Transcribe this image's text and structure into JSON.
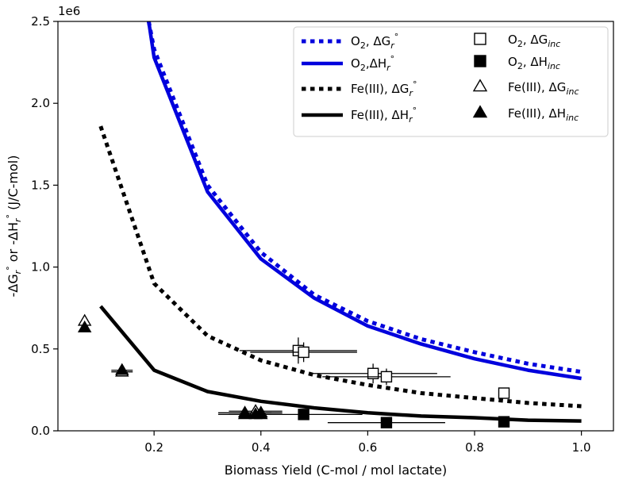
{
  "chart_data": {
    "type": "line",
    "title": "",
    "xlabel": "Biomass Yield (C-mol / mol lactate)",
    "ylabel_parts": [
      "-ΔG",
      "r",
      "°",
      " or -ΔH",
      "r",
      "°",
      " (J/C-mol)"
    ],
    "y_multiplier_label": "1e6",
    "xlim": [
      0.02,
      1.06
    ],
    "ylim": [
      0,
      2.5
    ],
    "y_scale": 1000000,
    "x_ticks": [
      0.2,
      0.4,
      0.6,
      0.8,
      1.0
    ],
    "x_tick_labels": [
      "0.2",
      "0.4",
      "0.6",
      "0.8",
      "1.0"
    ],
    "y_ticks": [
      0.0,
      0.5,
      1.0,
      1.5,
      2.0,
      2.5
    ],
    "y_tick_labels": [
      "0.0",
      "0.5",
      "1.0",
      "1.5",
      "2.0",
      "2.5"
    ],
    "grid": false,
    "legend_position": "top-right",
    "colors": {
      "blue": "#0000dd",
      "black": "#000000"
    },
    "lines": [
      {
        "name": "O2, ΔGr° (dotted)",
        "color": "#0000dd",
        "style": "dotted",
        "label_main": "O",
        "label_sub": "2",
        "label_rest": ", ΔG",
        "label_r": "r",
        "label_deg": "°",
        "x": [
          0.19,
          0.2,
          0.3,
          0.4,
          0.5,
          0.6,
          0.7,
          0.8,
          0.9,
          1.0
        ],
        "y": [
          2.5,
          2.33,
          1.5,
          1.09,
          0.83,
          0.67,
          0.56,
          0.48,
          0.41,
          0.36
        ]
      },
      {
        "name": "O2, ΔHr° (solid)",
        "color": "#0000dd",
        "style": "solid",
        "label_main": "O",
        "label_sub": "2",
        "label_rest": ",ΔH",
        "label_r": "r",
        "label_deg": "°",
        "x": [
          0.19,
          0.2,
          0.3,
          0.4,
          0.5,
          0.6,
          0.7,
          0.8,
          0.9,
          1.0
        ],
        "y": [
          2.5,
          2.28,
          1.46,
          1.05,
          0.81,
          0.64,
          0.53,
          0.44,
          0.37,
          0.32
        ]
      },
      {
        "name": "Fe(III), ΔGr° (dotted)",
        "color": "#000000",
        "style": "dotted",
        "label_main": "Fe(III), ΔG",
        "label_sub": "",
        "label_rest": "",
        "label_r": "r",
        "label_deg": "°",
        "x": [
          0.1,
          0.2,
          0.3,
          0.4,
          0.5,
          0.6,
          0.7,
          0.8,
          0.9,
          1.0
        ],
        "y": [
          1.86,
          0.9,
          0.58,
          0.43,
          0.34,
          0.28,
          0.23,
          0.2,
          0.17,
          0.15
        ]
      },
      {
        "name": "Fe(III), ΔHr° (solid)",
        "color": "#000000",
        "style": "solid",
        "label_main": "Fe(III), ΔH",
        "label_sub": "",
        "label_rest": "",
        "label_r": "r",
        "label_deg": "°",
        "x": [
          0.1,
          0.2,
          0.3,
          0.4,
          0.5,
          0.6,
          0.7,
          0.8,
          0.9,
          1.0
        ],
        "y": [
          0.76,
          0.37,
          0.24,
          0.18,
          0.14,
          0.11,
          0.09,
          0.08,
          0.065,
          0.06
        ]
      }
    ],
    "markers": [
      {
        "name": "O2, ΔGinc",
        "shape": "square",
        "filled": false,
        "label_main": "O",
        "label_sub": "2",
        "label_rest": ", ΔG",
        "label_inc": "inc",
        "points": [
          {
            "x": 0.47,
            "y": 0.49,
            "xerr": 0.11,
            "yerr": 0.08
          },
          {
            "x": 0.48,
            "y": 0.48,
            "xerr": 0.1,
            "yerr": 0.06
          },
          {
            "x": 0.61,
            "y": 0.35,
            "xerr": 0.12,
            "yerr": 0.06
          },
          {
            "x": 0.635,
            "y": 0.33,
            "xerr": 0.12,
            "yerr": 0.05
          },
          {
            "x": 0.855,
            "y": 0.23,
            "xerr": 0,
            "yerr": 0
          }
        ]
      },
      {
        "name": "O2, ΔHinc",
        "shape": "square",
        "filled": true,
        "label_main": "O",
        "label_sub": "2",
        "label_rest": ", ΔH",
        "label_inc": "inc",
        "points": [
          {
            "x": 0.48,
            "y": 0.1,
            "xerr": 0.11,
            "yerr": 0
          },
          {
            "x": 0.635,
            "y": 0.05,
            "xerr": 0.11,
            "yerr": 0
          },
          {
            "x": 0.855,
            "y": 0.055,
            "xerr": 0,
            "yerr": 0
          }
        ]
      },
      {
        "name": "Fe(III), ΔGinc",
        "shape": "triangle",
        "filled": false,
        "label_main": "Fe(III), ΔG",
        "label_sub": "",
        "label_rest": "",
        "label_inc": "inc",
        "points": [
          {
            "x": 0.07,
            "y": 0.67,
            "xerr": 0,
            "yerr": 0.04
          },
          {
            "x": 0.14,
            "y": 0.36,
            "xerr": 0.02,
            "yerr": 0
          },
          {
            "x": 0.37,
            "y": 0.11,
            "xerr": 0.05,
            "yerr": 0
          },
          {
            "x": 0.39,
            "y": 0.12,
            "xerr": 0.05,
            "yerr": 0
          },
          {
            "x": 0.4,
            "y": 0.11,
            "xerr": 0.04,
            "yerr": 0
          }
        ]
      },
      {
        "name": "Fe(III), ΔHinc",
        "shape": "triangle",
        "filled": true,
        "label_main": "Fe(III), ΔH",
        "label_sub": "",
        "label_rest": "",
        "label_inc": "inc",
        "points": [
          {
            "x": 0.07,
            "y": 0.63,
            "xerr": 0,
            "yerr": 0
          },
          {
            "x": 0.14,
            "y": 0.37,
            "xerr": 0.02,
            "yerr": 0
          },
          {
            "x": 0.37,
            "y": 0.1,
            "xerr": 0.05,
            "yerr": 0
          },
          {
            "x": 0.39,
            "y": 0.1,
            "xerr": 0.05,
            "yerr": 0
          },
          {
            "x": 0.4,
            "y": 0.1,
            "xerr": 0.04,
            "yerr": 0
          }
        ]
      }
    ]
  }
}
